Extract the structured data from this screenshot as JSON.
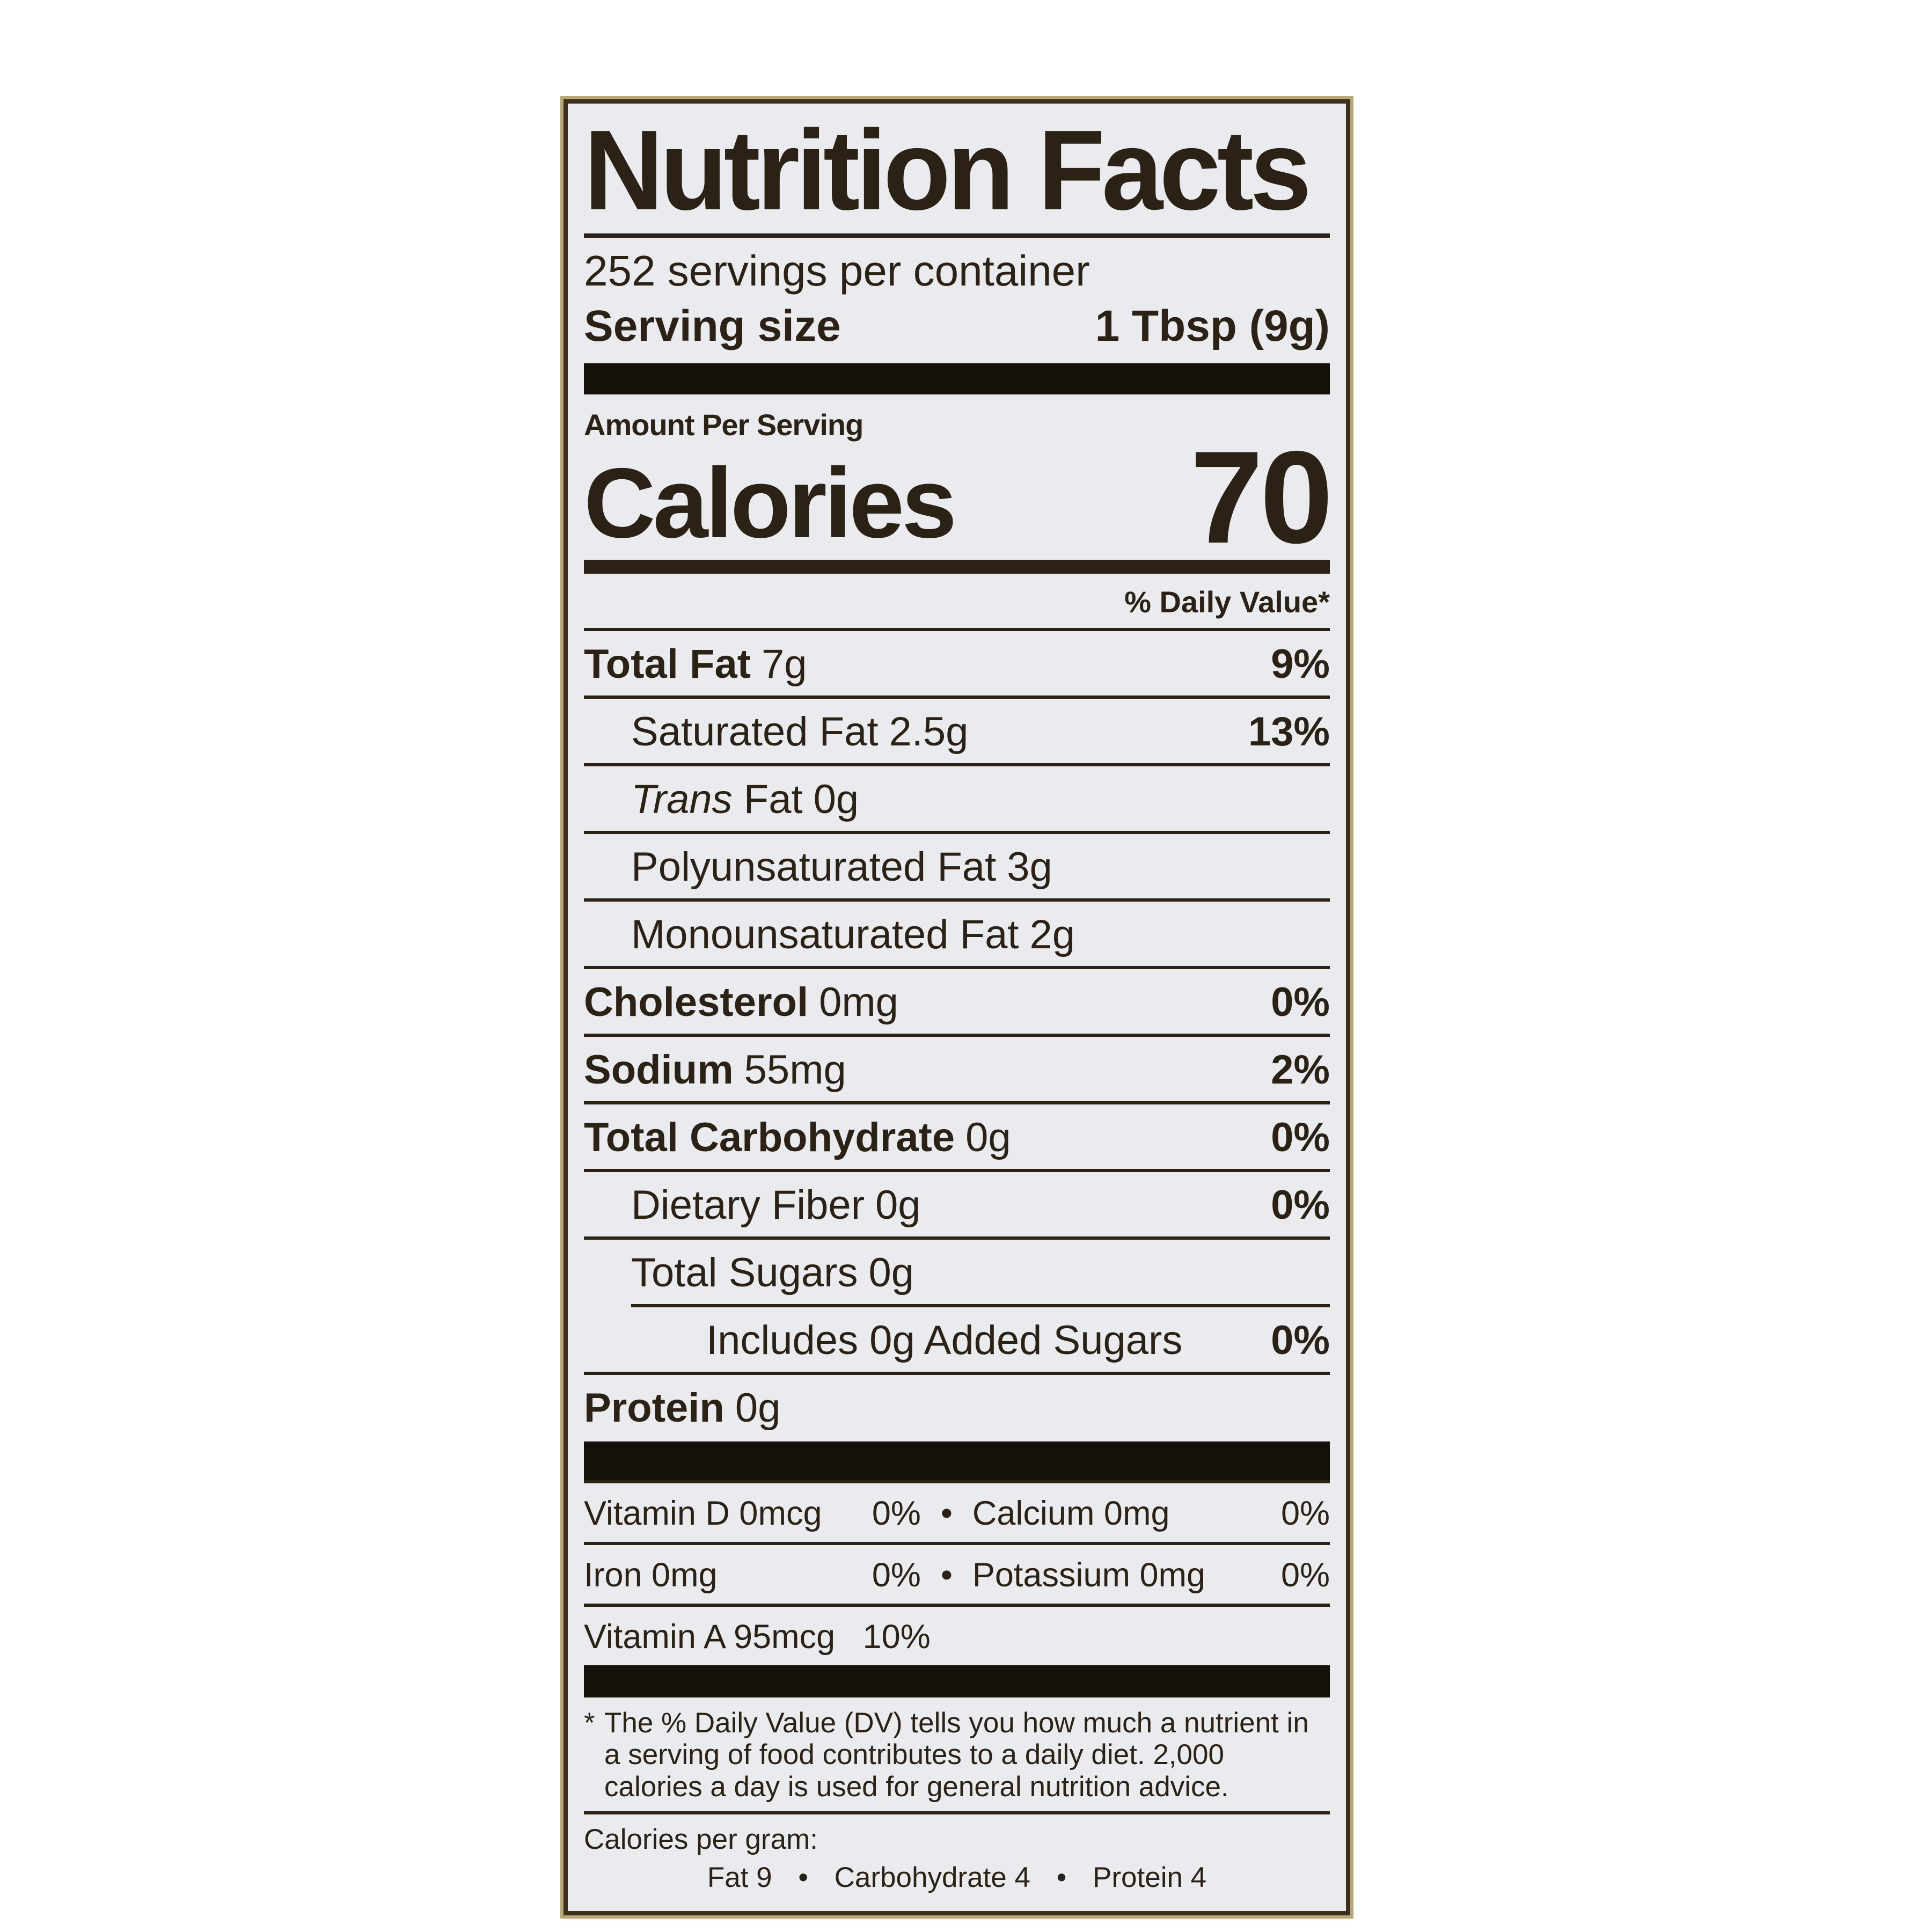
{
  "label": {
    "colors": {
      "label_background": "#e9ebef",
      "ink": "#2b2115",
      "thick_bar": "#16100a",
      "border": "#3c2f1e",
      "border_outer_edge": "#b9a878",
      "page_background": "#ffffff"
    },
    "title": "Nutrition Facts",
    "servings_per_container": "252 servings per container",
    "serving_size": {
      "label": "Serving size",
      "value": "1 Tbsp (9g)"
    },
    "amount_per_serving": "Amount Per Serving",
    "calories": {
      "label": "Calories",
      "value": "70"
    },
    "daily_value_header": "% Daily Value*",
    "rows": [
      {
        "name": "Total Fat",
        "amount": "7g",
        "dv": "9%"
      },
      {
        "name": "Saturated Fat",
        "amount": "2.5g",
        "dv": "13%"
      },
      {
        "name_italic": "Trans",
        "name": "Fat",
        "amount": "0g"
      },
      {
        "name": "Polyunsaturated Fat",
        "amount": "3g"
      },
      {
        "name": "Monounsaturated Fat",
        "amount": "2g"
      },
      {
        "name": "Cholesterol",
        "amount": "0mg",
        "dv": "0%"
      },
      {
        "name": "Sodium",
        "amount": "55mg",
        "dv": "2%"
      },
      {
        "name": "Total Carbohydrate",
        "amount": "0g",
        "dv": "0%"
      },
      {
        "name": "Dietary Fiber",
        "amount": "0g",
        "dv": "0%"
      },
      {
        "name": "Total Sugars",
        "amount": "0g"
      },
      {
        "name": "Includes 0g Added Sugars",
        "dv": "0%"
      },
      {
        "name": "Protein",
        "amount": "0g"
      }
    ],
    "vitamins": {
      "bullet": "•",
      "row1": {
        "left_name": "Vitamin D 0mcg",
        "left_dv": "0%",
        "right_name": "Calcium 0mg",
        "right_dv": "0%"
      },
      "row2": {
        "left_name": "Iron 0mg",
        "left_dv": "0%",
        "right_name": "Potassium 0mg",
        "right_dv": "0%"
      },
      "row3": {
        "name": "Vitamin A 95mcg",
        "dv": "10%"
      }
    },
    "footnote": {
      "marker": "*",
      "text": "The % Daily Value (DV) tells you how much a nutrient in a serving of food contributes to a daily diet. 2,000 calories a day is used for general nutrition advice."
    },
    "calories_per_gram": {
      "label": "Calories per gram:",
      "bullet": "•",
      "items": [
        "Fat 9",
        "Carbohydrate 4",
        "Protein 4"
      ]
    }
  }
}
